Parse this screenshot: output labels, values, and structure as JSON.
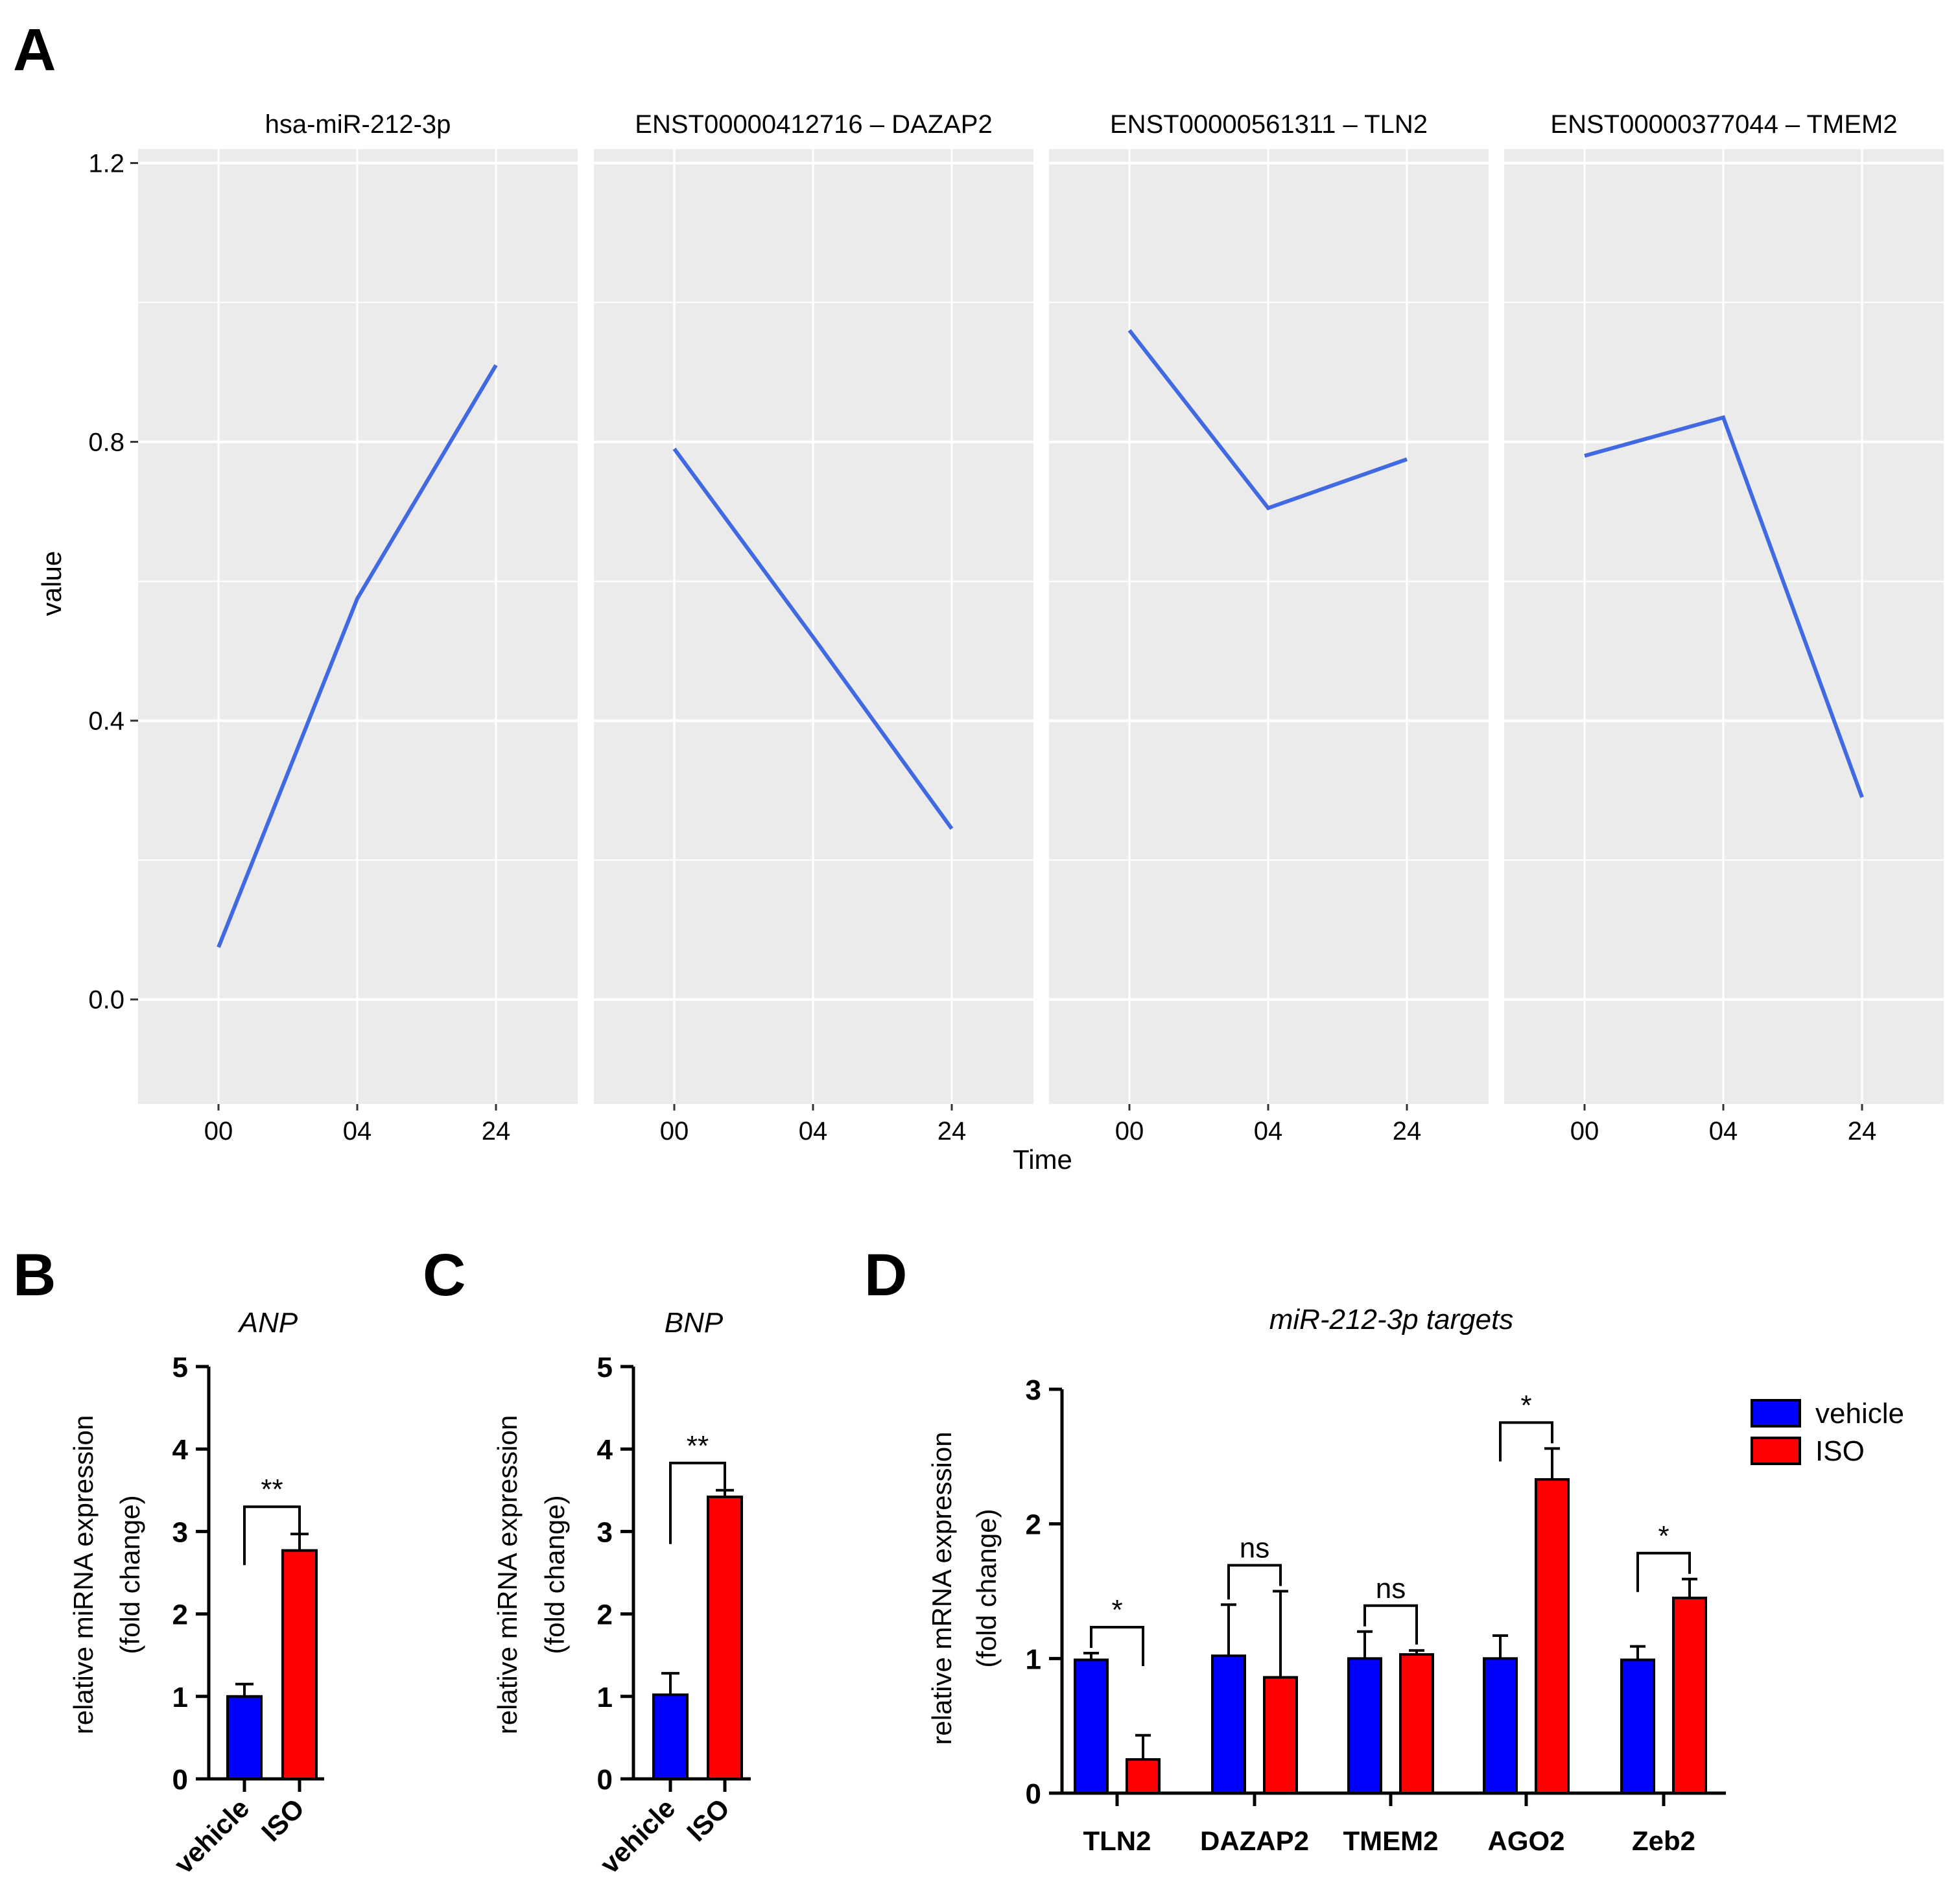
{
  "panel_labels": {
    "A": "A",
    "B": "B",
    "C": "C",
    "D": "D"
  },
  "colors": {
    "line": "#4169e1",
    "vehicle": "#0000ff",
    "iso": "#ff0000",
    "panel_bg": "#ebebeb",
    "grid": "#ffffff"
  },
  "chart_data": [
    {
      "id": "A",
      "type": "line",
      "xlabel": "Time",
      "ylabel": "value",
      "ylim": [
        -0.15,
        1.22
      ],
      "y_ticks": [
        "0.0",
        "0.4",
        "0.8",
        "1.2"
      ],
      "x": [
        "00",
        "04",
        "24"
      ],
      "facets": [
        {
          "title": "hsa-miR-212-3p",
          "values": [
            0.075,
            0.575,
            0.91
          ]
        },
        {
          "title": "ENST00000412716 – DAZAP2",
          "values": [
            0.79,
            0.52,
            0.245
          ]
        },
        {
          "title": "ENST00000561311 – TLN2",
          "values": [
            0.96,
            0.705,
            0.775
          ]
        },
        {
          "title": "ENST00000377044 – TMEM2",
          "values": [
            0.78,
            0.835,
            0.29
          ]
        }
      ]
    },
    {
      "id": "B",
      "type": "bar",
      "title": "ANP",
      "ylabel": [
        "relative miRNA expression",
        "(fold change)"
      ],
      "ylim": [
        0,
        5
      ],
      "y_ticks": [
        "0",
        "1",
        "2",
        "3",
        "4",
        "5"
      ],
      "categories": [
        "vehicle",
        "ISO"
      ],
      "values": [
        1.0,
        2.77
      ],
      "errors": [
        0.15,
        0.2
      ],
      "significance": "**"
    },
    {
      "id": "C",
      "type": "bar",
      "title": "BNP",
      "ylabel": [
        "relative miRNA expression",
        "(fold change)"
      ],
      "ylim": [
        0,
        5
      ],
      "y_ticks": [
        "0",
        "1",
        "2",
        "3",
        "4",
        "5"
      ],
      "categories": [
        "vehicle",
        "ISO"
      ],
      "values": [
        1.02,
        3.42
      ],
      "errors": [
        0.26,
        0.08
      ],
      "significance": "**"
    },
    {
      "id": "D",
      "type": "bar",
      "title": "miR-212-3p targets",
      "ylabel": [
        "relative mRNA expression",
        "(fold change)"
      ],
      "ylim": [
        0,
        3
      ],
      "y_ticks": [
        "0",
        "1",
        "2",
        "3"
      ],
      "categories": [
        "TLN2",
        "DAZAP2",
        "TMEM2",
        "AGO2",
        "Zeb2"
      ],
      "series": [
        {
          "name": "vehicle",
          "values": [
            0.99,
            1.02,
            1.0,
            1.0,
            0.99
          ],
          "errors": [
            0.05,
            0.38,
            0.2,
            0.17,
            0.1
          ]
        },
        {
          "name": "ISO",
          "values": [
            0.25,
            0.86,
            1.03,
            2.33,
            1.45
          ],
          "errors": [
            0.18,
            0.64,
            0.03,
            0.23,
            0.14
          ]
        }
      ],
      "significance": [
        "*",
        "ns",
        "ns",
        "*",
        "*"
      ],
      "legend": [
        "vehicle",
        "ISO"
      ]
    }
  ]
}
